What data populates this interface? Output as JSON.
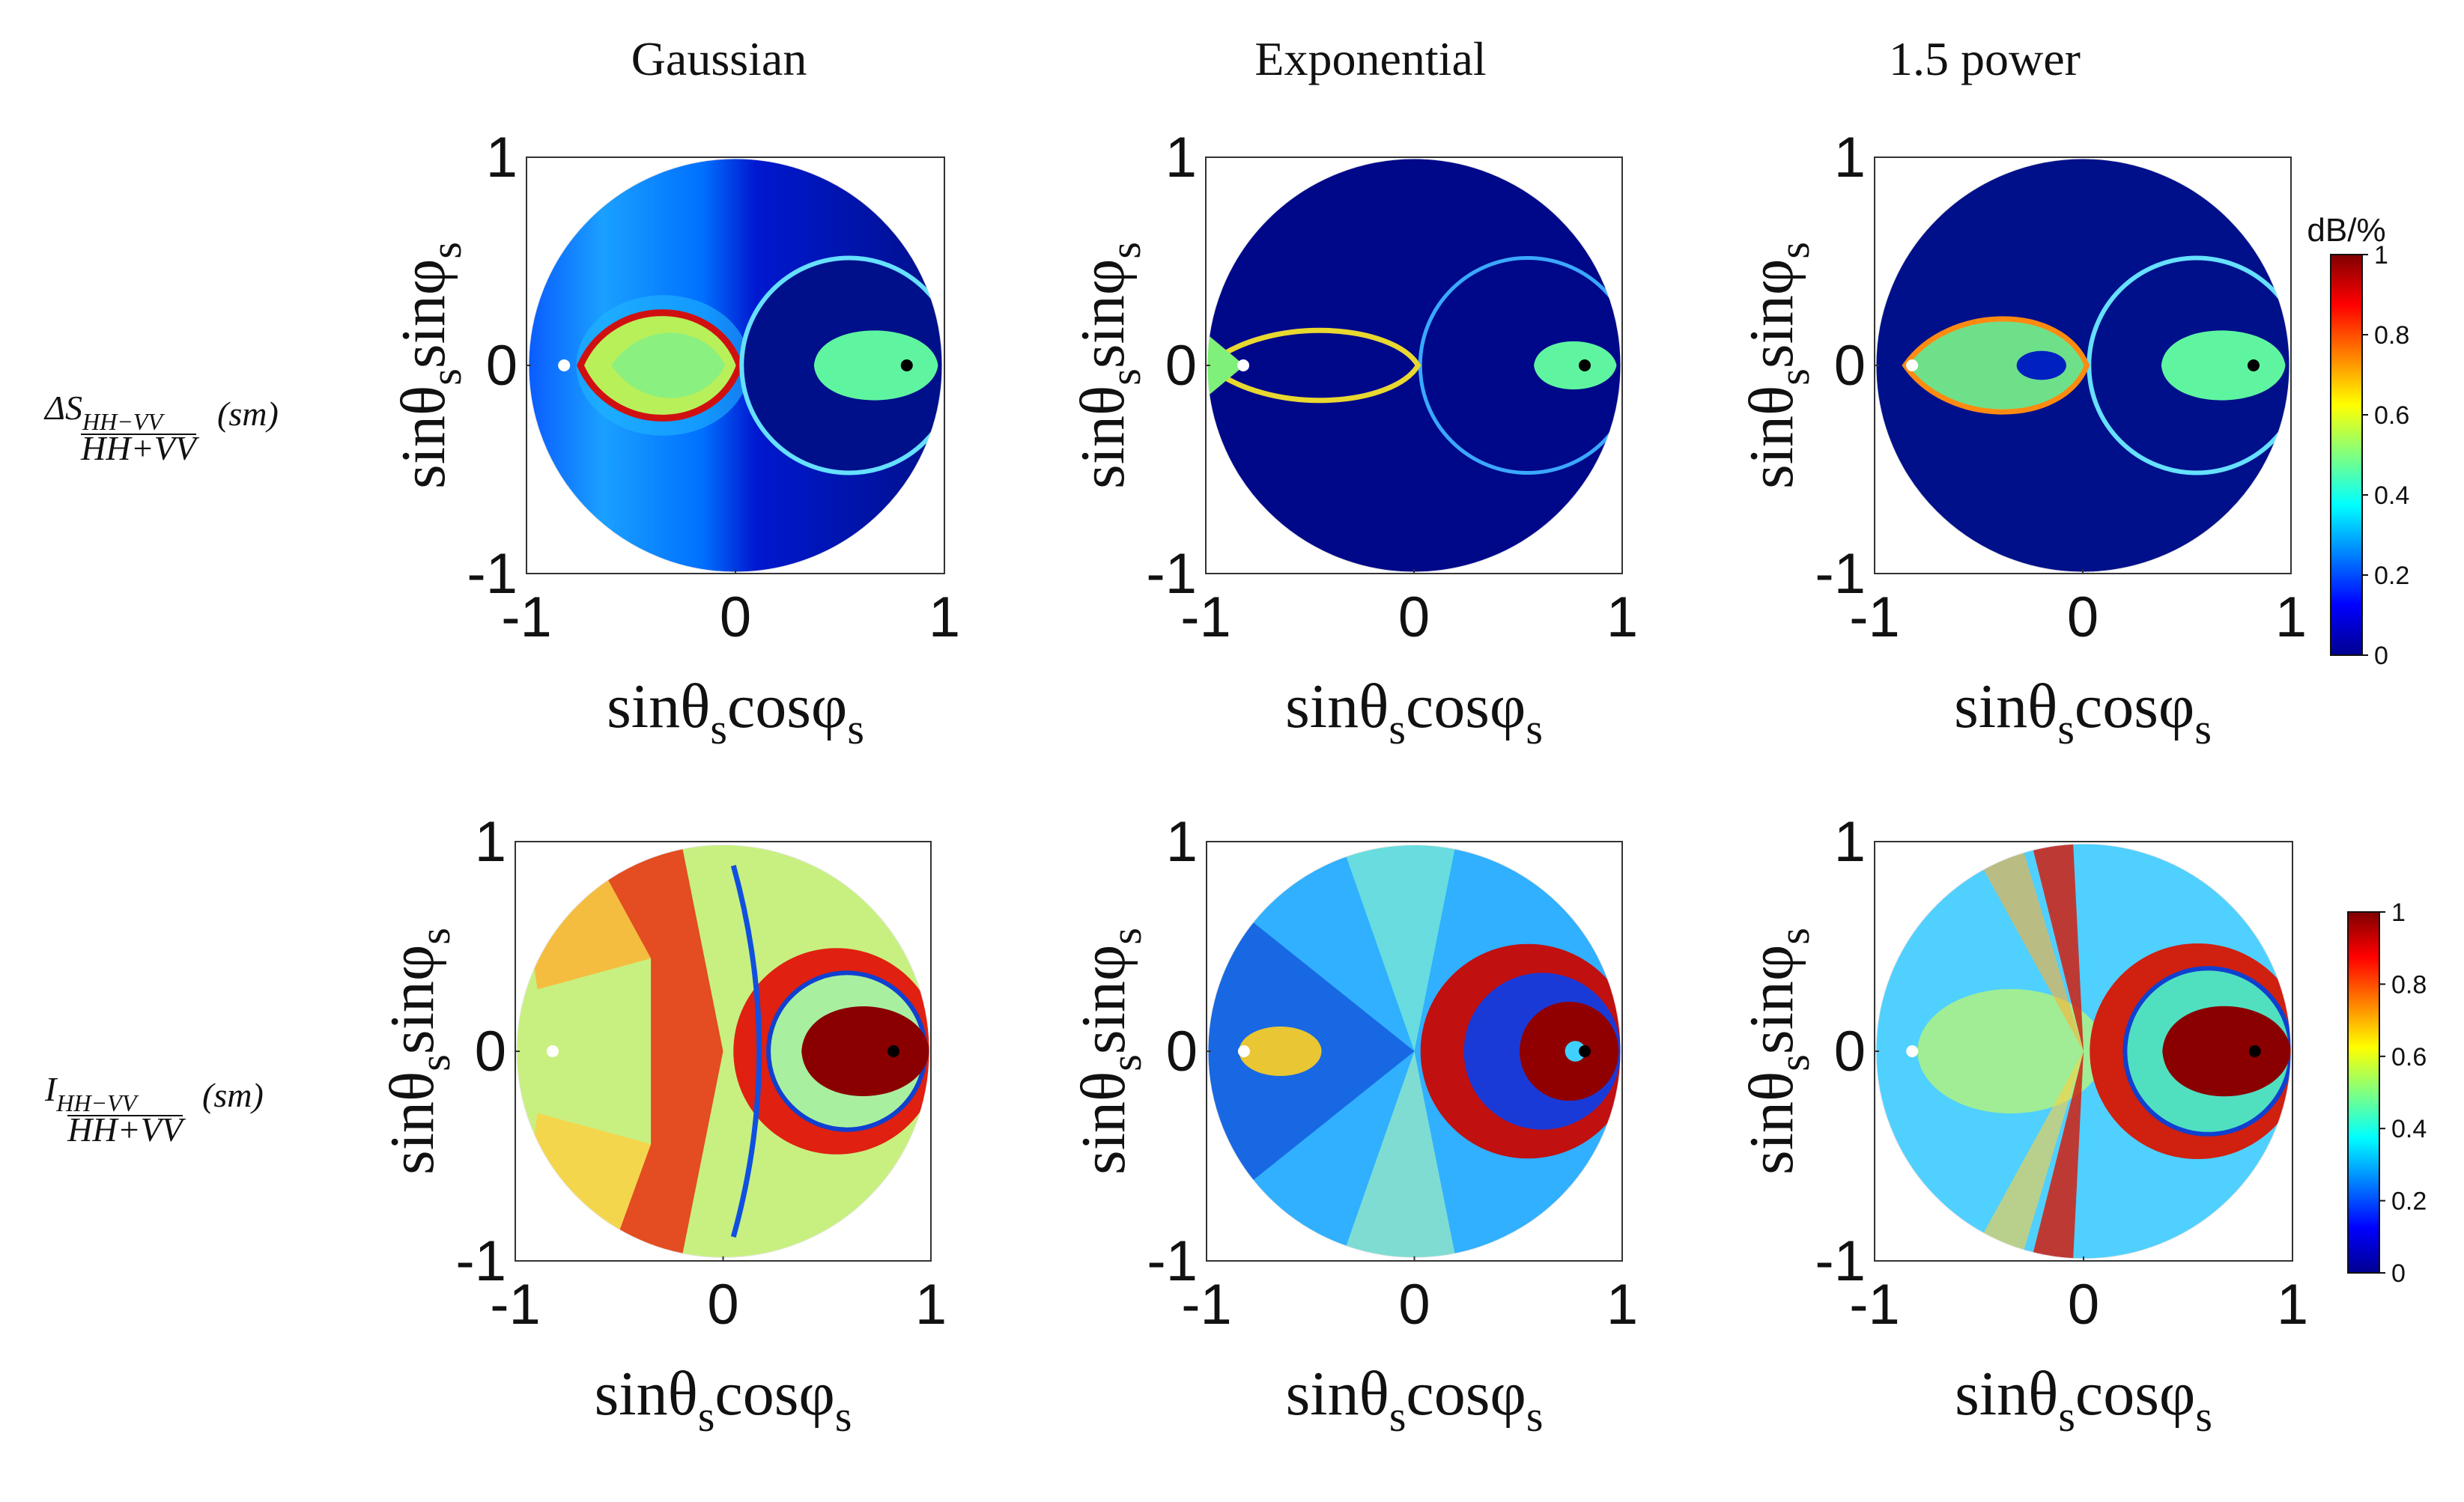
{
  "columns": [
    "Gaussian",
    "Exponential",
    "1.5 power"
  ],
  "rows": [
    {
      "label_main": "ΔS",
      "label_sub": "HH−VV",
      "label_den": "HH+VV",
      "label_paren": "(sm)"
    },
    {
      "label_main": "I",
      "label_sub": "HH−VV",
      "label_den": "HH+VV",
      "label_paren": "(sm)"
    }
  ],
  "axes": {
    "xlabel": {
      "main": "sinθ",
      "s1": "s",
      "mid": "cosφ",
      "s2": "s"
    },
    "ylabel": {
      "main": "sinθ",
      "s1": "s",
      "mid": "sinφ",
      "s2": "s"
    },
    "xticks": [
      "-1",
      "0",
      "1"
    ],
    "yticks": [
      "1",
      "0",
      "-1"
    ]
  },
  "colorbars": [
    {
      "unit": "dB/%",
      "ticks": [
        "1",
        "0.8",
        "0.6",
        "0.4",
        "0.2",
        "0"
      ]
    },
    {
      "unit": "",
      "ticks": [
        "1",
        "0.8",
        "0.6",
        "0.4",
        "0.2",
        "0"
      ]
    }
  ],
  "colors": {
    "colormap": "jet",
    "marker_incident": "#ffffff",
    "marker_specular": "#000000"
  },
  "chart_data": [
    {
      "type": "heatmap",
      "panel": "Gaussian / ΔS",
      "xlim": [
        -1,
        1
      ],
      "ylim": [
        -1,
        1
      ],
      "clim": [
        0,
        1
      ],
      "markers": [
        {
          "x": -0.82,
          "y": 0,
          "color": "white"
        },
        {
          "x": 0.82,
          "y": 0,
          "color": "black"
        }
      ]
    },
    {
      "type": "heatmap",
      "panel": "Exponential / ΔS",
      "xlim": [
        -1,
        1
      ],
      "ylim": [
        -1,
        1
      ],
      "clim": [
        0,
        1
      ],
      "markers": [
        {
          "x": -0.82,
          "y": 0,
          "color": "white"
        },
        {
          "x": 0.82,
          "y": 0,
          "color": "black"
        }
      ]
    },
    {
      "type": "heatmap",
      "panel": "1.5 power / ΔS",
      "xlim": [
        -1,
        1
      ],
      "ylim": [
        -1,
        1
      ],
      "clim": [
        0,
        1
      ],
      "markers": [
        {
          "x": -0.82,
          "y": 0,
          "color": "white"
        },
        {
          "x": 0.82,
          "y": 0,
          "color": "black"
        }
      ]
    },
    {
      "type": "heatmap",
      "panel": "Gaussian / I",
      "xlim": [
        -1,
        1
      ],
      "ylim": [
        -1,
        1
      ],
      "clim": [
        0,
        1
      ],
      "markers": [
        {
          "x": -0.82,
          "y": 0,
          "color": "white"
        },
        {
          "x": 0.82,
          "y": 0,
          "color": "black"
        }
      ]
    },
    {
      "type": "heatmap",
      "panel": "Exponential / I",
      "xlim": [
        -1,
        1
      ],
      "ylim": [
        -1,
        1
      ],
      "clim": [
        0,
        1
      ],
      "markers": [
        {
          "x": -0.82,
          "y": 0,
          "color": "white"
        },
        {
          "x": 0.82,
          "y": 0,
          "color": "black"
        }
      ]
    },
    {
      "type": "heatmap",
      "panel": "1.5 power / I",
      "xlim": [
        -1,
        1
      ],
      "ylim": [
        -1,
        1
      ],
      "clim": [
        0,
        1
      ],
      "markers": [
        {
          "x": -0.82,
          "y": 0,
          "color": "white"
        },
        {
          "x": 0.82,
          "y": 0,
          "color": "black"
        }
      ]
    }
  ]
}
